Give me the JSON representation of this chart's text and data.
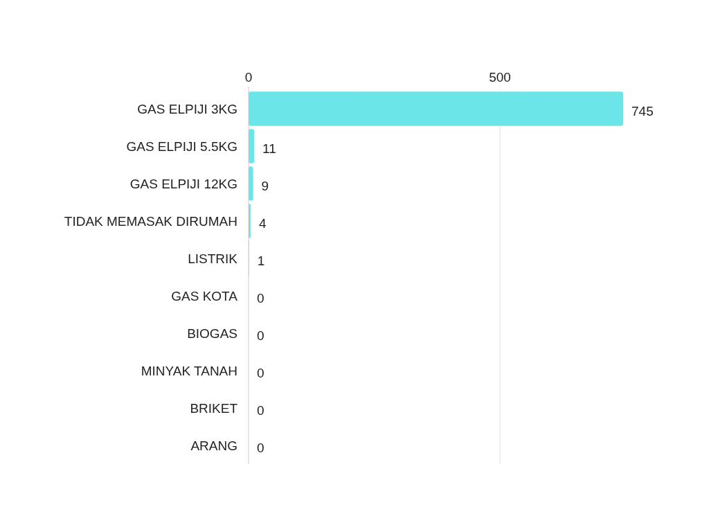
{
  "chart_data": {
    "type": "bar",
    "orientation": "horizontal",
    "categories": [
      "GAS ELPIJI 3KG",
      "GAS ELPIJI 5.5KG",
      "GAS ELPIJI 12KG",
      "TIDAK MEMASAK DIRUMAH",
      "LISTRIK",
      "GAS KOTA",
      "BIOGAS",
      "MINYAK TANAH",
      "BRIKET",
      "ARANG"
    ],
    "values": [
      745,
      11,
      9,
      4,
      1,
      0,
      0,
      0,
      0,
      0
    ],
    "color": "#6ce5e8",
    "xlim": [
      0,
      745
    ],
    "xticks": [
      0,
      500
    ],
    "grid": "x",
    "data_labels": true
  }
}
